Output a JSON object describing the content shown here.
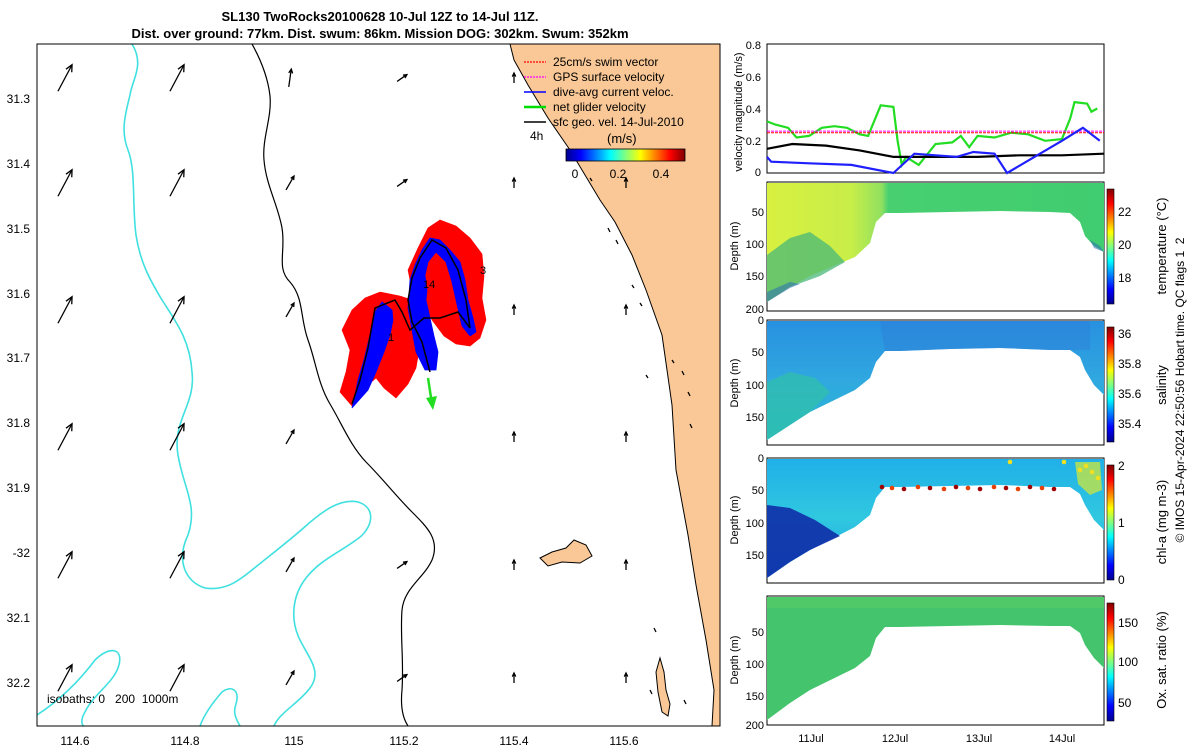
{
  "title": {
    "line1": "SL130 TwoRocks20100628 10-Jul 12Z to 14-Jul 11Z.",
    "line2": "Dist. over ground: 77km. Dist. swum: 86km. Mission DOG: 302km. Swum: 352km"
  },
  "map": {
    "lon_ticks": [
      "114.6",
      "114.8",
      "115",
      "115.2",
      "115.4",
      "115.6"
    ],
    "lat_ticks": [
      "31.3",
      "31.4",
      "31.5",
      "31.6",
      "31.7",
      "31.8",
      "31.9",
      "-32",
      "32.1",
      "32.2"
    ],
    "legend": [
      {
        "label": "25cm/s swim vector",
        "color": "#ff0000"
      },
      {
        "label": "GPS surface velocity",
        "color": "#ff00ff"
      },
      {
        "label": "dive-avg current veloc.",
        "color": "#0000ff"
      },
      {
        "label": "net glider velocity",
        "color": "#00dd00"
      },
      {
        "label": "sfc geo. vel. 14-Jul-2010",
        "color": "#000000"
      }
    ],
    "arrow_scale_label": "4h",
    "colorbar": {
      "unit": "(m/s)",
      "ticks": [
        "0",
        "0.2",
        "0.4"
      ]
    },
    "isobaths_label": "isobaths: 0   200  1000m",
    "track_day_labels": [
      "1",
      "3",
      "14"
    ],
    "colors": {
      "land": "#fac896",
      "isobath_200": "#000000",
      "isobath_1000": "#40e0e0"
    }
  },
  "chart_data": [
    {
      "type": "line",
      "ylabel": "velocity magnitude (m/s)",
      "ylim": [
        0,
        0.8
      ],
      "y_ticks": [
        "0",
        "0.2",
        "0.4",
        "0.6",
        "0.8"
      ],
      "x_days": [
        10.5,
        14.5
      ],
      "series": [
        {
          "name": "net glider velocity",
          "color": "#22dd22",
          "points": [
            [
              10.5,
              0.32
            ],
            [
              10.6,
              0.3
            ],
            [
              10.75,
              0.28
            ],
            [
              10.85,
              0.22
            ],
            [
              11.0,
              0.23
            ],
            [
              11.15,
              0.28
            ],
            [
              11.3,
              0.29
            ],
            [
              11.45,
              0.28
            ],
            [
              11.6,
              0.24
            ],
            [
              11.7,
              0.23
            ],
            [
              11.85,
              0.42
            ],
            [
              12.0,
              0.41
            ],
            [
              12.05,
              0.2
            ],
            [
              12.1,
              0.05
            ],
            [
              12.15,
              0.1
            ],
            [
              12.3,
              0.05
            ],
            [
              12.5,
              0.18
            ],
            [
              12.7,
              0.19
            ],
            [
              12.8,
              0.23
            ],
            [
              12.9,
              0.16
            ],
            [
              13.0,
              0.23
            ],
            [
              13.2,
              0.22
            ],
            [
              13.4,
              0.25
            ],
            [
              13.6,
              0.24
            ],
            [
              13.8,
              0.2
            ],
            [
              14.0,
              0.21
            ],
            [
              14.1,
              0.34
            ],
            [
              14.15,
              0.44
            ],
            [
              14.3,
              0.43
            ],
            [
              14.35,
              0.38
            ],
            [
              14.42,
              0.4
            ]
          ]
        },
        {
          "name": "25cm/s swim vector",
          "color": "#ff0000",
          "dashed": true,
          "points": [
            [
              10.5,
              0.25
            ],
            [
              14.5,
              0.25
            ]
          ]
        },
        {
          "name": "GPS surface velocity",
          "color": "#ff00ff",
          "dashed": true,
          "points": [
            [
              10.5,
              0.26
            ],
            [
              14.5,
              0.26
            ]
          ]
        },
        {
          "name": "sfc geo. vel.",
          "color": "#000000",
          "points": [
            [
              10.5,
              0.15
            ],
            [
              10.8,
              0.18
            ],
            [
              11.2,
              0.17
            ],
            [
              11.6,
              0.14
            ],
            [
              12.0,
              0.1
            ],
            [
              12.5,
              0.1
            ],
            [
              13.0,
              0.1
            ],
            [
              13.5,
              0.11
            ],
            [
              14.0,
              0.11
            ],
            [
              14.5,
              0.12
            ]
          ]
        },
        {
          "name": "dive-avg current veloc.",
          "color": "#2020ff",
          "points": [
            [
              10.5,
              0.1
            ],
            [
              10.55,
              0.07
            ],
            [
              11.0,
              0.06
            ],
            [
              11.5,
              0.05
            ],
            [
              12.0,
              0.0
            ],
            [
              12.25,
              0.12
            ],
            [
              12.5,
              0.11
            ],
            [
              12.75,
              0.1
            ],
            [
              12.95,
              0.13
            ],
            [
              13.2,
              0.12
            ],
            [
              13.35,
              0.0
            ],
            [
              14.0,
              0.2
            ],
            [
              14.25,
              0.28
            ],
            [
              14.45,
              0.2
            ]
          ]
        }
      ]
    },
    {
      "type": "heatmap",
      "ylabel": "Depth (m)",
      "y_ticks": [
        "50",
        "100",
        "150",
        "200"
      ],
      "clabel": "temperature (°C)",
      "cticks": [
        "18",
        "20",
        "22"
      ],
      "crange": [
        16.5,
        23.5
      ]
    },
    {
      "type": "heatmap",
      "ylabel": "Depth (m)",
      "y_ticks": [
        "0",
        "50",
        "100",
        "150"
      ],
      "clabel": "salinity",
      "cticks": [
        "35.4",
        "35.6",
        "35.8",
        "36"
      ],
      "crange": [
        35.25,
        36.05
      ]
    },
    {
      "type": "heatmap",
      "ylabel": "Depth (m)",
      "y_ticks": [
        "0",
        "50",
        "100",
        "150"
      ],
      "clabel": "chl-a (mg m-3)",
      "cticks": [
        "0",
        "1",
        "2"
      ],
      "crange": [
        0,
        2
      ]
    },
    {
      "type": "heatmap",
      "ylabel": "Depth (m)",
      "y_ticks": [
        "50",
        "100",
        "150",
        "200"
      ],
      "clabel": "Ox. sat. ratio (%)",
      "cticks": [
        "50",
        "100",
        "150"
      ],
      "crange": [
        25,
        175
      ]
    }
  ],
  "time_axis": {
    "ticks": [
      "11Jul",
      "12Jul",
      "13Jul",
      "14Jul"
    ]
  },
  "side_text": "© IMOS 15-Apr-2024 22:50:56 Hobart time. QC flags 1  2"
}
